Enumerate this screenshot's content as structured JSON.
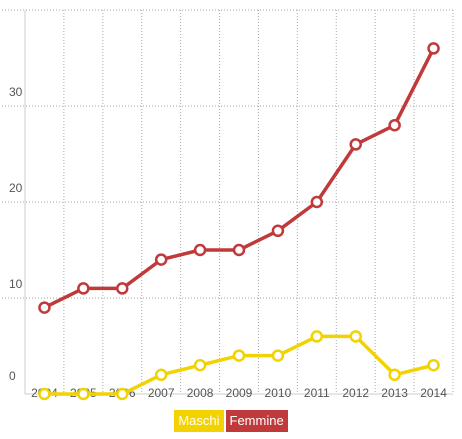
{
  "chart_data": {
    "type": "line",
    "categories": [
      "2004",
      "2005",
      "2006",
      "2007",
      "2008",
      "2009",
      "2010",
      "2011",
      "2012",
      "2013",
      "2014"
    ],
    "series": [
      {
        "name": "Maschi",
        "color": "#f2d200",
        "values": [
          0,
          0,
          0,
          2,
          3,
          4,
          4,
          6,
          6,
          2,
          3
        ]
      },
      {
        "name": "Femmine",
        "color": "#c0393b",
        "values": [
          9,
          11,
          11,
          14,
          15,
          15,
          17,
          20,
          26,
          28,
          36
        ]
      }
    ],
    "ylim": [
      0,
      40
    ],
    "yticks": [
      "0",
      "10",
      "20",
      "30",
      "40"
    ],
    "grid": true,
    "legend_position": "bottom-center",
    "title": "",
    "xlabel": "",
    "ylabel": ""
  },
  "legend": {
    "items": [
      {
        "label": "Maschi",
        "color": "#f2d200"
      },
      {
        "label": "Femmine",
        "color": "#c0393b"
      }
    ]
  }
}
